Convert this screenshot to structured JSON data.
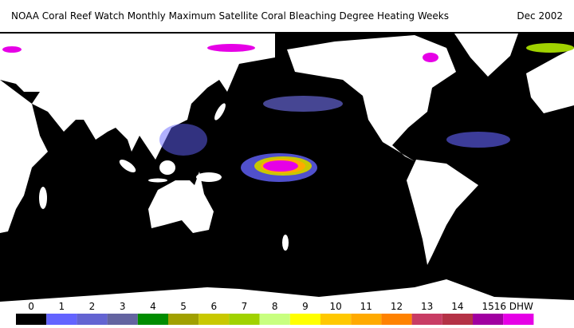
{
  "header": {
    "title": "NOAA Coral Reef Watch Monthly Maximum Satellite Coral Bleaching Degree Heating Weeks",
    "date": "Dec 2002"
  },
  "colorbar": {
    "ticks": [
      0,
      1,
      2,
      3,
      4,
      5,
      6,
      7,
      8,
      9,
      10,
      11,
      12,
      13,
      14,
      15,
      {
        "value": 16,
        "label": "16 DHW"
      }
    ],
    "colors": [
      "#000000",
      "#6464ff",
      "#6464d2",
      "#6464a0",
      "#008c00",
      "#a0a000",
      "#c8c800",
      "#a0d200",
      "#c8ff80",
      "#ffff00",
      "#ffc800",
      "#ffaa00",
      "#ff8200",
      "#c83c64",
      "#b43246",
      "#a000a0",
      "#e600e6"
    ]
  }
}
